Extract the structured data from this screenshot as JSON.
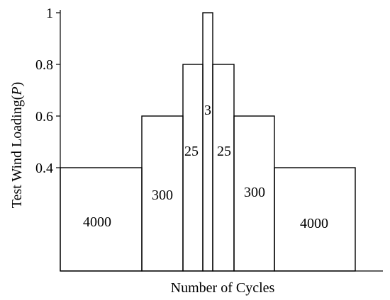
{
  "chart_data": {
    "type": "bar",
    "title": "",
    "xlabel": "Number of Cycles",
    "ylabel_prefix": "Test Wind Loading(",
    "ylabel_var": "P",
    "ylabel_suffix": ")",
    "ylim": [
      0,
      1
    ],
    "yticks": [
      {
        "value": 0.4,
        "label": "0.4"
      },
      {
        "value": 0.6,
        "label": "0.6"
      },
      {
        "value": 0.8,
        "label": "0.8"
      },
      {
        "value": 1.0,
        "label": "1"
      }
    ],
    "blocks": [
      {
        "load": 0.4,
        "cycles": "4000"
      },
      {
        "load": 0.6,
        "cycles": "300"
      },
      {
        "load": 0.8,
        "cycles": "25"
      },
      {
        "load": 1.0,
        "cycles": "3"
      },
      {
        "load": 0.8,
        "cycles": "25"
      },
      {
        "load": 0.6,
        "cycles": "300"
      },
      {
        "load": 0.4,
        "cycles": "4000"
      }
    ]
  }
}
